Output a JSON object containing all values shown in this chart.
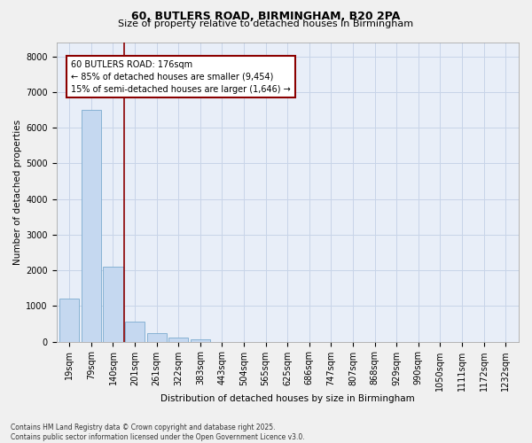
{
  "title_line1": "60, BUTLERS ROAD, BIRMINGHAM, B20 2PA",
  "title_line2": "Size of property relative to detached houses in Birmingham",
  "xlabel": "Distribution of detached houses by size in Birmingham",
  "ylabel": "Number of detached properties",
  "categories": [
    "19sqm",
    "79sqm",
    "140sqm",
    "201sqm",
    "261sqm",
    "322sqm",
    "383sqm",
    "443sqm",
    "504sqm",
    "565sqm",
    "625sqm",
    "686sqm",
    "747sqm",
    "807sqm",
    "868sqm",
    "929sqm",
    "990sqm",
    "1050sqm",
    "1111sqm",
    "1172sqm",
    "1232sqm"
  ],
  "values": [
    1200,
    6500,
    2100,
    570,
    240,
    110,
    60,
    0,
    0,
    0,
    0,
    0,
    0,
    0,
    0,
    0,
    0,
    0,
    0,
    0,
    0
  ],
  "bar_color": "#c5d8f0",
  "bar_edge_color": "#7aabcf",
  "vline_x_index": 2.5,
  "vline_color": "#8b0000",
  "annotation_text": "60 BUTLERS ROAD: 176sqm\n← 85% of detached houses are smaller (9,454)\n15% of semi-detached houses are larger (1,646) →",
  "annotation_box_color": "#ffffff",
  "annotation_box_edge": "#8b0000",
  "ylim": [
    0,
    8400
  ],
  "yticks": [
    0,
    1000,
    2000,
    3000,
    4000,
    5000,
    6000,
    7000,
    8000
  ],
  "grid_color": "#c8d4e8",
  "plot_bg_color": "#e8eef8",
  "fig_bg_color": "#f0f0f0",
  "footer_line1": "Contains HM Land Registry data © Crown copyright and database right 2025.",
  "footer_line2": "Contains public sector information licensed under the Open Government Licence v3.0.",
  "title1_fontsize": 9,
  "title2_fontsize": 8,
  "ylabel_fontsize": 7.5,
  "xlabel_fontsize": 7.5,
  "tick_fontsize": 7,
  "footer_fontsize": 5.5,
  "annot_fontsize": 7
}
